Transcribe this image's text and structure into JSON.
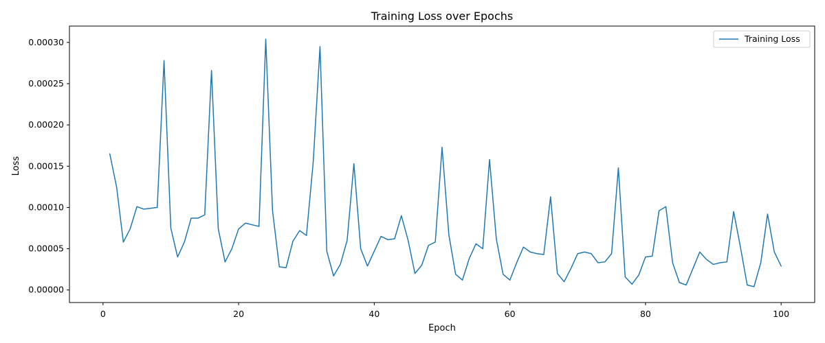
{
  "chart_data": {
    "type": "line",
    "title": "Training Loss over Epochs",
    "xlabel": "Epoch",
    "ylabel": "Loss",
    "xlim": [
      -4.95,
      104.95
    ],
    "ylim": [
      -1.52e-05,
      0.0003198
    ],
    "xticks": [
      0,
      20,
      40,
      60,
      80,
      100
    ],
    "xtick_labels": [
      "0",
      "20",
      "40",
      "60",
      "80",
      "100"
    ],
    "yticks": [
      0,
      5e-05,
      0.0001,
      0.00015,
      0.0002,
      0.00025,
      0.0003
    ],
    "ytick_labels": [
      "0.00000",
      "0.00005",
      "0.00010",
      "0.00015",
      "0.00020",
      "0.00025",
      "0.00030"
    ],
    "grid": false,
    "legend_position": "upper right",
    "colors": {
      "series": "#1f77b4",
      "axes": "#000000",
      "legend_border": "#cccccc"
    },
    "series": [
      {
        "name": "Training Loss",
        "x": [
          1,
          2,
          3,
          4,
          5,
          6,
          7,
          8,
          9,
          10,
          11,
          12,
          13,
          14,
          15,
          16,
          17,
          18,
          19,
          20,
          21,
          22,
          23,
          24,
          25,
          26,
          27,
          28,
          29,
          30,
          31,
          32,
          33,
          34,
          35,
          36,
          37,
          38,
          39,
          40,
          41,
          42,
          43,
          44,
          45,
          46,
          47,
          48,
          49,
          50,
          51,
          52,
          53,
          54,
          55,
          56,
          57,
          58,
          59,
          60,
          61,
          62,
          63,
          64,
          65,
          66,
          67,
          68,
          69,
          70,
          71,
          72,
          73,
          74,
          75,
          76,
          77,
          78,
          79,
          80,
          81,
          82,
          83,
          84,
          85,
          86,
          87,
          88,
          89,
          90,
          91,
          92,
          93,
          94,
          95,
          96,
          97,
          98,
          99,
          100
        ],
        "y": [
          0.000165,
          0.000125,
          5.8e-05,
          7.4e-05,
          0.000101,
          9.8e-05,
          9.9e-05,
          0.0001,
          0.000278,
          7.5e-05,
          4e-05,
          5.8e-05,
          8.7e-05,
          8.7e-05,
          9.1e-05,
          0.000266,
          7.4e-05,
          3.4e-05,
          5e-05,
          7.4e-05,
          8.1e-05,
          7.9e-05,
          7.7e-05,
          0.000304,
          9.6e-05,
          2.8e-05,
          2.7e-05,
          5.9e-05,
          7.2e-05,
          6.6e-05,
          0.000155,
          0.000295,
          4.7e-05,
          1.7e-05,
          3.1e-05,
          6e-05,
          0.000153,
          5e-05,
          2.9e-05,
          4.7e-05,
          6.5e-05,
          6.1e-05,
          6.2e-05,
          9e-05,
          6e-05,
          2e-05,
          3e-05,
          5.4e-05,
          5.8e-05,
          0.000173,
          6.7e-05,
          1.9e-05,
          1.2e-05,
          3.8e-05,
          5.6e-05,
          5e-05,
          0.000158,
          6.2e-05,
          1.9e-05,
          1.2e-05,
          3.3e-05,
          5.2e-05,
          4.6e-05,
          4.4e-05,
          4.3e-05,
          0.000113,
          2e-05,
          1e-05,
          2.6e-05,
          4.4e-05,
          4.6e-05,
          4.4e-05,
          3.3e-05,
          3.4e-05,
          4.4e-05,
          0.000148,
          1.6e-05,
          7e-06,
          1.8e-05,
          4e-05,
          4.1e-05,
          9.6e-05,
          0.000101,
          3.3e-05,
          9e-06,
          6e-06,
          2.6e-05,
          4.6e-05,
          3.7e-05,
          3.1e-05,
          3.3e-05,
          3.4e-05,
          9.5e-05,
          5.2e-05,
          6e-06,
          4e-06,
          3.3e-05,
          9.2e-05,
          4.6e-05,
          2.9e-05
        ]
      }
    ]
  }
}
